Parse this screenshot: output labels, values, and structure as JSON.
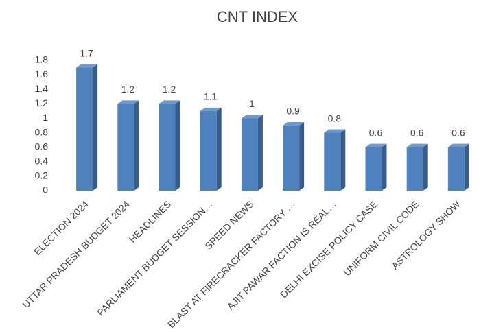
{
  "chart_data": {
    "type": "bar3d",
    "title": "CNT INDEX",
    "categories": [
      "ELECTION 2024",
      "UTTAR PRADESH BUDGET 2024",
      "HEADLINES",
      "PARLIAMENT BUDGET SESSION…",
      "SPEED NEWS",
      "BLAST AT FIRECRACKER FACTORY …",
      "AJIT PAWAR FACTION IS REAL…",
      "DELHI EXCISE POLICY CASE",
      "UNIFORM CIVIL CODE",
      "ASTROLOGY SHOW"
    ],
    "values": [
      1.7,
      1.2,
      1.2,
      1.1,
      1,
      0.9,
      0.8,
      0.6,
      0.6,
      0.6
    ],
    "color": "#4f81bd",
    "ylim": [
      0,
      1.8
    ],
    "yticks": [
      0,
      0.2,
      0.4,
      0.6,
      0.8,
      1,
      1.2,
      1.4,
      1.6,
      1.8
    ],
    "grid": false
  }
}
